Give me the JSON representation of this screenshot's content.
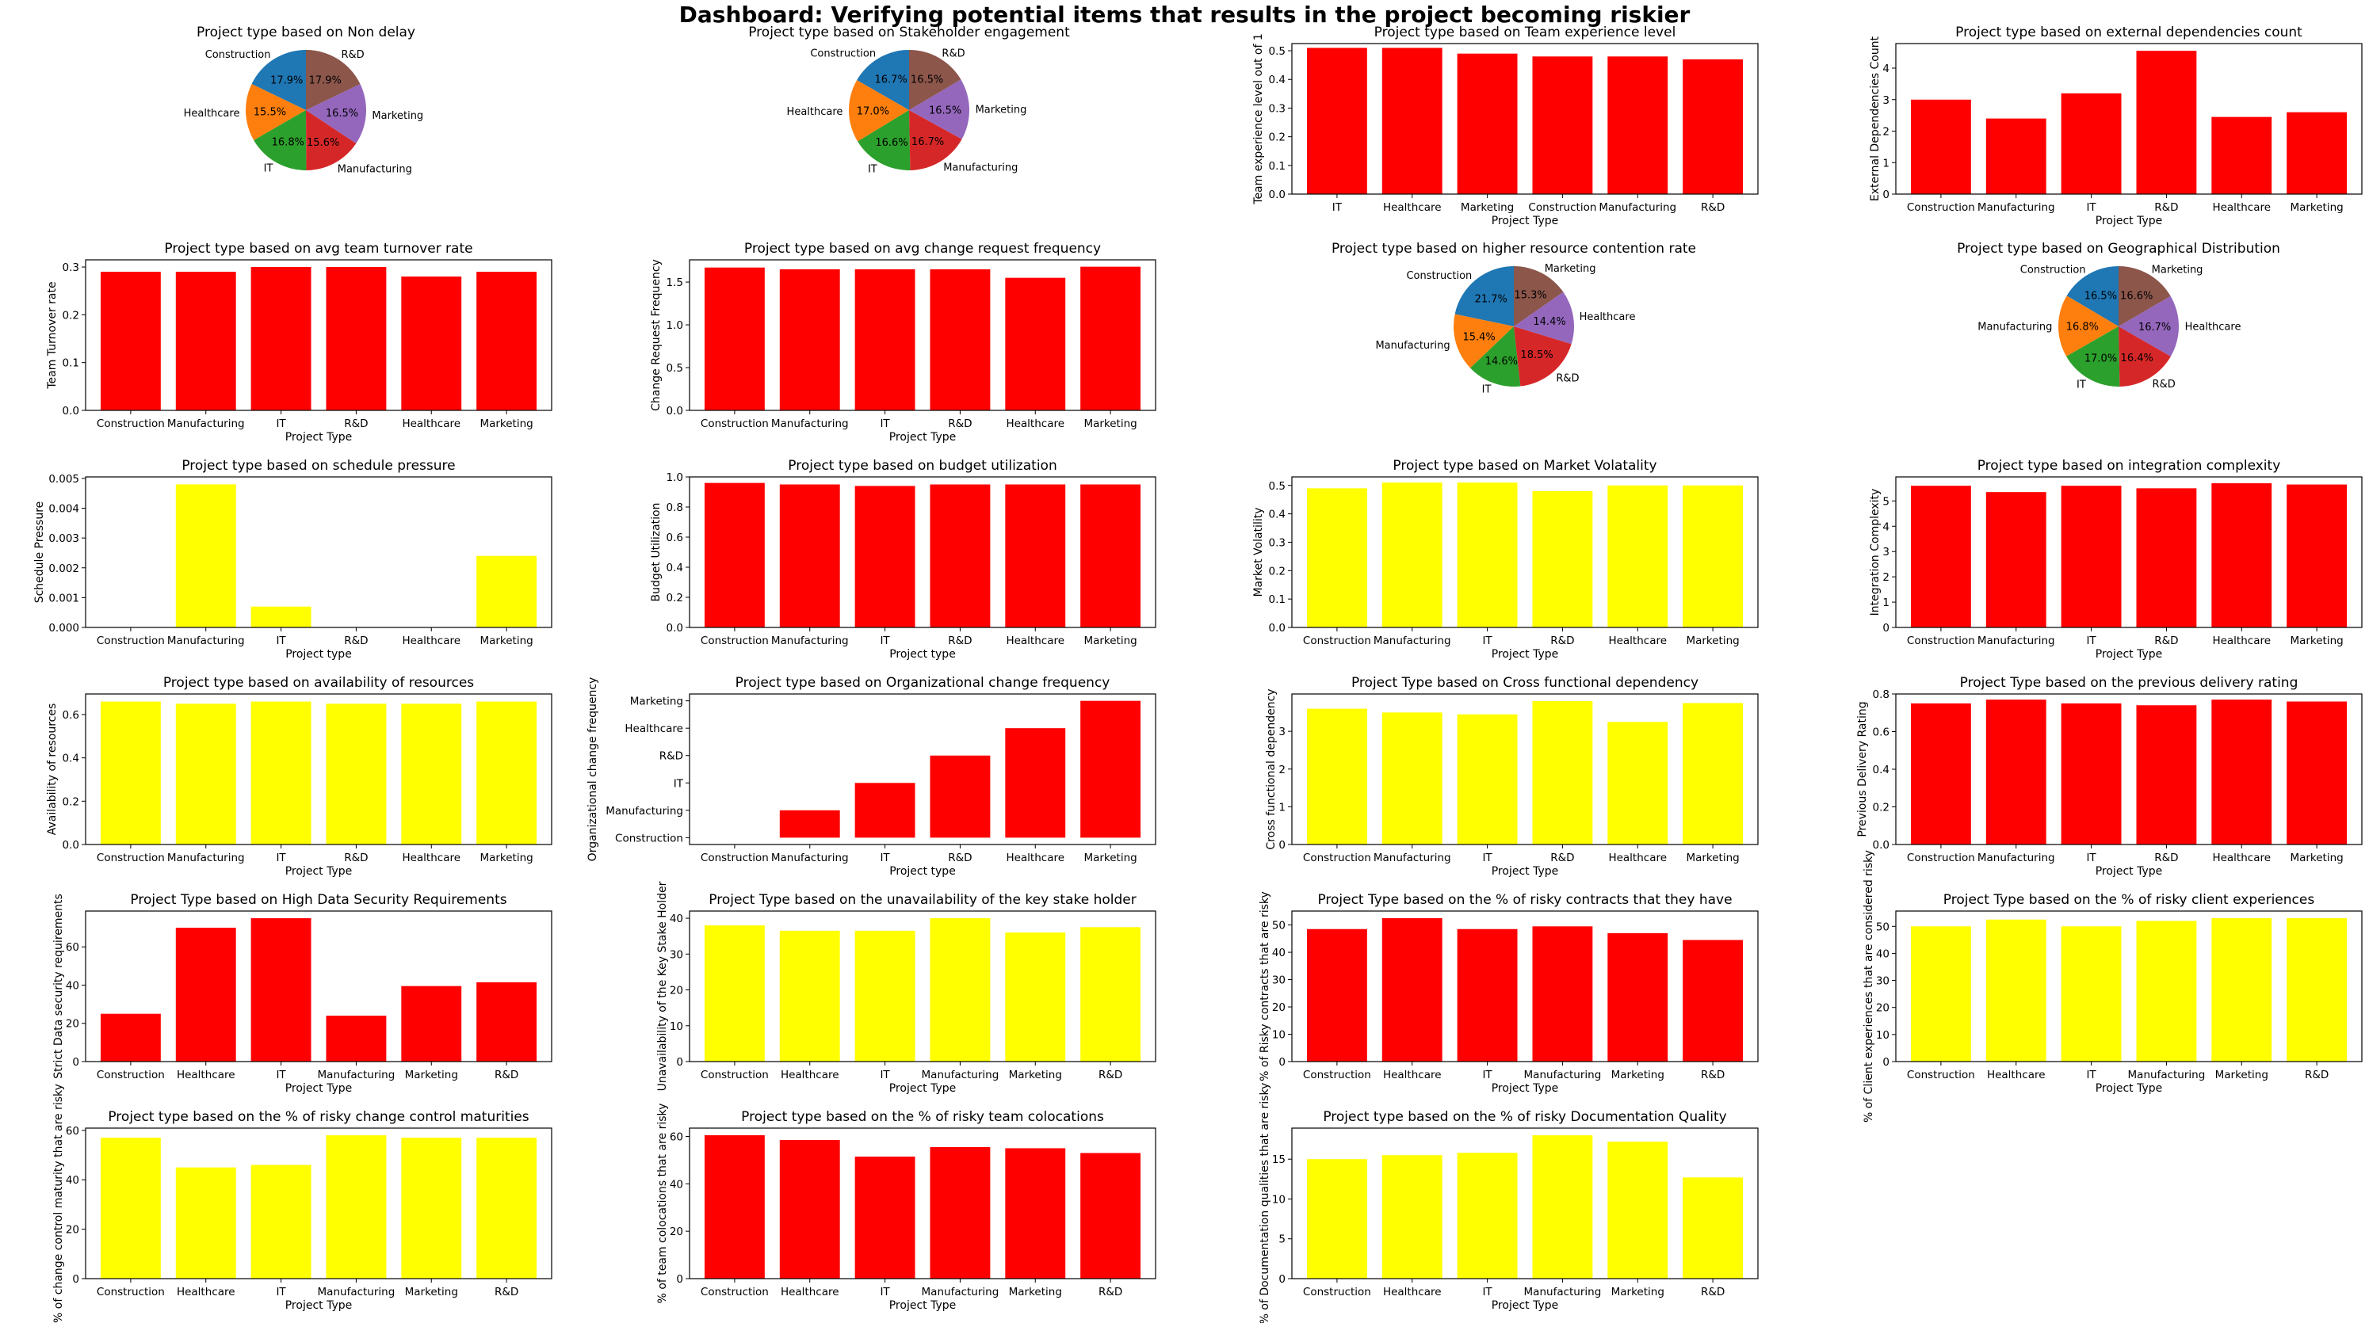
{
  "dashboard": {
    "title": "Dashboard: Verifying potential items that results in the project becoming riskier"
  },
  "colors": {
    "red": "#ff0000",
    "yellow": "#ffff00",
    "pie": [
      "#1f77b4",
      "#ff7f0e",
      "#2ca02c",
      "#d62728",
      "#9467bd",
      "#8c564b"
    ]
  },
  "chart_data": [
    {
      "type": "pie",
      "title": "Project type based on Non delay",
      "labels": [
        "Construction",
        "Healthcare",
        "IT",
        "Manufacturing",
        "Marketing",
        "R&D"
      ],
      "values": [
        17.9,
        15.5,
        16.8,
        15.6,
        16.5,
        17.9
      ],
      "pct_labels": [
        "17.9%",
        "15.5%",
        "16.8%",
        "15.6%",
        "16.5%",
        "17.9%"
      ]
    },
    {
      "type": "pie",
      "title": "Project type based on Stakeholder engagement",
      "labels": [
        "Construction",
        "Healthcare",
        "IT",
        "Manufacturing",
        "Marketing",
        "R&D"
      ],
      "values": [
        16.7,
        17.0,
        16.6,
        16.7,
        16.5,
        16.5
      ],
      "pct_labels": [
        "16.7%",
        "17.0%",
        "16.6%",
        "16.7%",
        "16.5%",
        "16.5%"
      ]
    },
    {
      "type": "bar",
      "orientation": "vertical",
      "title": "Project type based on Team experience level",
      "xlabel": "Project Type",
      "ylabel": "Team experience level out of 1",
      "color": "red",
      "categories": [
        "IT",
        "Healthcare",
        "Marketing",
        "Construction",
        "Manufacturing",
        "R&D"
      ],
      "values": [
        0.51,
        0.51,
        0.49,
        0.48,
        0.48,
        0.47
      ],
      "ylim": [
        0,
        0.525
      ],
      "yticks": [
        0.0,
        0.1,
        0.2,
        0.3,
        0.4,
        0.5
      ],
      "ytick_labels": [
        "0.0",
        "0.1",
        "0.2",
        "0.3",
        "0.4",
        "0.5"
      ]
    },
    {
      "type": "bar",
      "orientation": "vertical",
      "title": "Project type based on external dependencies count",
      "xlabel": "Project Type",
      "ylabel": "External Dependencies Count",
      "color": "red",
      "categories": [
        "Construction",
        "Manufacturing",
        "IT",
        "R&D",
        "Healthcare",
        "Marketing"
      ],
      "values": [
        3.0,
        2.4,
        3.2,
        4.55,
        2.45,
        2.6
      ],
      "ylim": [
        0,
        4.78
      ],
      "yticks": [
        0,
        1,
        2,
        3,
        4
      ],
      "ytick_labels": [
        "0",
        "1",
        "2",
        "3",
        "4"
      ]
    },
    {
      "type": "bar",
      "orientation": "vertical",
      "title": "Project type based on avg team turnover rate",
      "xlabel": "Project Type",
      "ylabel": "Team Turnover rate",
      "color": "red",
      "categories": [
        "Construction",
        "Manufacturing",
        "IT",
        "R&D",
        "Healthcare",
        "Marketing"
      ],
      "values": [
        0.29,
        0.29,
        0.3,
        0.3,
        0.28,
        0.29
      ],
      "ylim": [
        0,
        0.315
      ],
      "yticks": [
        0.0,
        0.1,
        0.2,
        0.3
      ],
      "ytick_labels": [
        "0.0",
        "0.1",
        "0.2",
        "0.3"
      ]
    },
    {
      "type": "bar",
      "orientation": "vertical",
      "title": "Project type based on avg change request frequency",
      "xlabel": "Project Type",
      "ylabel": "Change Request Frequency",
      "color": "red",
      "categories": [
        "Construction",
        "Manufacturing",
        "IT",
        "R&D",
        "Healthcare",
        "Marketing"
      ],
      "values": [
        1.67,
        1.65,
        1.65,
        1.65,
        1.55,
        1.68
      ],
      "ylim": [
        0,
        1.76
      ],
      "yticks": [
        0.0,
        0.5,
        1.0,
        1.5
      ],
      "ytick_labels": [
        "0.0",
        "0.5",
        "1.0",
        "1.5"
      ]
    },
    {
      "type": "pie",
      "title": "Project type based on higher resource contention rate",
      "labels": [
        "Construction",
        "Manufacturing",
        "IT",
        "R&D",
        "Healthcare",
        "Marketing"
      ],
      "values": [
        21.7,
        15.4,
        14.6,
        18.5,
        14.4,
        15.3
      ],
      "pct_labels": [
        "21.7%",
        "15.4%",
        "14.6%",
        "18.5%",
        "14.4%",
        "15.3%"
      ]
    },
    {
      "type": "pie",
      "title": "Project type based on Geographical Distribution",
      "labels": [
        "Construction",
        "Manufacturing",
        "IT",
        "R&D",
        "Healthcare",
        "Marketing"
      ],
      "values": [
        16.5,
        16.8,
        17.0,
        16.4,
        16.7,
        16.6
      ],
      "pct_labels": [
        "16.5%",
        "16.8%",
        "17.0%",
        "16.4%",
        "16.7%",
        "16.6%"
      ]
    },
    {
      "type": "bar",
      "orientation": "vertical",
      "title": "Project type based on schedule pressure",
      "xlabel": "Project type",
      "ylabel": "Schedule Pressure",
      "color": "yellow",
      "categories": [
        "Construction",
        "Manufacturing",
        "IT",
        "R&D",
        "Healthcare",
        "Marketing"
      ],
      "values": [
        0,
        0.0048,
        0.0007,
        0,
        0,
        0.0024
      ],
      "ylim": [
        0,
        0.00505
      ],
      "yticks": [
        0,
        0.001,
        0.002,
        0.003,
        0.004,
        0.005
      ],
      "ytick_labels": [
        "0.000",
        "0.001",
        "0.002",
        "0.003",
        "0.004",
        "0.005"
      ]
    },
    {
      "type": "bar",
      "orientation": "vertical",
      "title": "Project type based on budget utilization",
      "xlabel": "Project type",
      "ylabel": "Budget Utilization",
      "color": "red",
      "categories": [
        "Construction",
        "Manufacturing",
        "IT",
        "R&D",
        "Healthcare",
        "Marketing"
      ],
      "values": [
        0.96,
        0.95,
        0.94,
        0.95,
        0.95,
        0.95
      ],
      "ylim": [
        0,
        1.0
      ],
      "yticks": [
        0.0,
        0.2,
        0.4,
        0.6,
        0.8,
        1.0
      ],
      "ytick_labels": [
        "0.0",
        "0.2",
        "0.4",
        "0.6",
        "0.8",
        "1.0"
      ]
    },
    {
      "type": "bar",
      "orientation": "vertical",
      "title": "Project type based on Market Volatality",
      "xlabel": "Project Type",
      "ylabel": "Market Volatility",
      "color": "yellow",
      "categories": [
        "Construction",
        "Manufacturing",
        "IT",
        "R&D",
        "Healthcare",
        "Marketing"
      ],
      "values": [
        0.49,
        0.51,
        0.51,
        0.48,
        0.5,
        0.5
      ],
      "ylim": [
        0,
        0.53
      ],
      "yticks": [
        0.0,
        0.1,
        0.2,
        0.3,
        0.4,
        0.5
      ],
      "ytick_labels": [
        "0.0",
        "0.1",
        "0.2",
        "0.3",
        "0.4",
        "0.5"
      ]
    },
    {
      "type": "bar",
      "orientation": "vertical",
      "title": "Project type based on integration complexity",
      "xlabel": "Project Type",
      "ylabel": "Integration Complexity",
      "color": "red",
      "categories": [
        "Construction",
        "Manufacturing",
        "IT",
        "R&D",
        "Healthcare",
        "Marketing"
      ],
      "values": [
        5.6,
        5.35,
        5.6,
        5.5,
        5.7,
        5.65
      ],
      "ylim": [
        0,
        5.95
      ],
      "yticks": [
        0,
        1,
        2,
        3,
        4,
        5
      ],
      "ytick_labels": [
        "0",
        "1",
        "2",
        "3",
        "4",
        "5"
      ]
    },
    {
      "type": "bar",
      "orientation": "vertical",
      "title": "Project type based on availability of resources",
      "xlabel": "Project Type",
      "ylabel": "Availability of resources",
      "color": "yellow",
      "categories": [
        "Construction",
        "Manufacturing",
        "IT",
        "R&D",
        "Healthcare",
        "Marketing"
      ],
      "values": [
        0.66,
        0.65,
        0.66,
        0.65,
        0.65,
        0.66
      ],
      "ylim": [
        0,
        0.695
      ],
      "yticks": [
        0.0,
        0.2,
        0.4,
        0.6
      ],
      "ytick_labels": [
        "0.0",
        "0.2",
        "0.4",
        "0.6"
      ]
    },
    {
      "type": "bar",
      "orientation": "vertical",
      "title": "Project type based on Organizational change frequency",
      "xlabel": "Project type",
      "ylabel": "Organizational change frequency",
      "color": "red",
      "categories": [
        "Construction",
        "Manufacturing",
        "IT",
        "R&D",
        "Healthcare",
        "Marketing"
      ],
      "values": [
        0,
        1,
        2,
        3,
        4,
        5
      ],
      "ylim": [
        -0.25,
        5.25
      ],
      "yticks": [
        0,
        1,
        2,
        3,
        4,
        5
      ],
      "ytick_labels": [
        "Construction",
        "Manufacturing",
        "IT",
        "R&D",
        "Healthcare",
        "Marketing"
      ]
    },
    {
      "type": "bar",
      "orientation": "vertical",
      "title": "Project Type based on Cross functional dependency",
      "xlabel": "Project Type",
      "ylabel": "Cross functional dependency",
      "color": "yellow",
      "categories": [
        "Construction",
        "Manufacturing",
        "IT",
        "R&D",
        "Healthcare",
        "Marketing"
      ],
      "values": [
        3.6,
        3.5,
        3.45,
        3.8,
        3.25,
        3.75
      ],
      "ylim": [
        0,
        3.99
      ],
      "yticks": [
        0,
        1,
        2,
        3
      ],
      "ytick_labels": [
        "0",
        "1",
        "2",
        "3"
      ]
    },
    {
      "type": "bar",
      "orientation": "vertical",
      "title": "Project Type based on the previous delivery rating",
      "xlabel": "Project Type",
      "ylabel": "Previous Delivery Rating",
      "color": "red",
      "categories": [
        "Construction",
        "Manufacturing",
        "IT",
        "R&D",
        "Healthcare",
        "Marketing"
      ],
      "values": [
        0.75,
        0.77,
        0.75,
        0.74,
        0.77,
        0.76
      ],
      "ylim": [
        0,
        0.8
      ],
      "yticks": [
        0.0,
        0.2,
        0.4,
        0.6,
        0.8
      ],
      "ytick_labels": [
        "0.0",
        "0.2",
        "0.4",
        "0.6",
        "0.8"
      ]
    },
    {
      "type": "bar",
      "orientation": "vertical",
      "title": "Project Type based on High Data Security Requirements",
      "xlabel": "Project Type",
      "ylabel": "Strict Data security requirements",
      "color": "red",
      "categories": [
        "Construction",
        "Healthcare",
        "IT",
        "Manufacturing",
        "Marketing",
        "R&D"
      ],
      "values": [
        25,
        70,
        75,
        24,
        39.5,
        41.5
      ],
      "ylim": [
        0,
        78.75
      ],
      "yticks": [
        0,
        20,
        40,
        60
      ],
      "ytick_labels": [
        "0",
        "20",
        "40",
        "60"
      ]
    },
    {
      "type": "bar",
      "orientation": "vertical",
      "title": "Project Type based on the unavailability of the key stake holder",
      "xlabel": "Project Type",
      "ylabel": "Unavailability of the Key Stake Holder",
      "color": "yellow",
      "categories": [
        "Construction",
        "Healthcare",
        "IT",
        "Manufacturing",
        "Marketing",
        "R&D"
      ],
      "values": [
        38,
        36.5,
        36.5,
        40,
        36,
        37.5
      ],
      "ylim": [
        0,
        42
      ],
      "yticks": [
        0,
        10,
        20,
        30,
        40
      ],
      "ytick_labels": [
        "0",
        "10",
        "20",
        "30",
        "40"
      ]
    },
    {
      "type": "bar",
      "orientation": "vertical",
      "title": "Project Type based on the % of risky contracts that they have",
      "xlabel": "Project Type",
      "ylabel": "% of Risky contracts that are risky",
      "color": "red",
      "categories": [
        "Construction",
        "Healthcare",
        "IT",
        "Manufacturing",
        "Marketing",
        "R&D"
      ],
      "values": [
        48.5,
        52.5,
        48.5,
        49.5,
        47,
        44.5
      ],
      "ylim": [
        0,
        55.1
      ],
      "yticks": [
        0,
        10,
        20,
        30,
        40,
        50
      ],
      "ytick_labels": [
        "0",
        "10",
        "20",
        "30",
        "40",
        "50"
      ]
    },
    {
      "type": "bar",
      "orientation": "vertical",
      "title": "Project Type based on the % of risky client experiences",
      "xlabel": "Project Type",
      "ylabel": "% of Client experiences that are considered risky",
      "color": "yellow",
      "categories": [
        "Construction",
        "Healthcare",
        "IT",
        "Manufacturing",
        "Marketing",
        "R&D"
      ],
      "values": [
        50,
        52.5,
        50,
        52,
        53,
        53
      ],
      "ylim": [
        0,
        55.65
      ],
      "yticks": [
        0,
        10,
        20,
        30,
        40,
        50
      ],
      "ytick_labels": [
        "0",
        "10",
        "20",
        "30",
        "40",
        "50"
      ]
    },
    {
      "type": "bar",
      "orientation": "vertical",
      "title": "Project type based on the % of risky change control maturities",
      "xlabel": "Project Type",
      "ylabel": "% of change control maturity that are risky",
      "color": "yellow",
      "categories": [
        "Construction",
        "Healthcare",
        "IT",
        "Manufacturing",
        "Marketing",
        "R&D"
      ],
      "values": [
        57,
        45,
        46,
        58,
        57,
        57
      ],
      "ylim": [
        0,
        60.9
      ],
      "yticks": [
        0,
        20,
        40,
        60
      ],
      "ytick_labels": [
        "0",
        "20",
        "40",
        "60"
      ]
    },
    {
      "type": "bar",
      "orientation": "vertical",
      "title": "Project type based on the % of risky team colocations",
      "xlabel": "Project Type",
      "ylabel": "% of team colocations that are risky",
      "color": "red",
      "categories": [
        "Construction",
        "Healthcare",
        "IT",
        "Manufacturing",
        "Marketing",
        "R&D"
      ],
      "values": [
        60.5,
        58.5,
        51.5,
        55.5,
        55,
        53
      ],
      "ylim": [
        0,
        63.5
      ],
      "yticks": [
        0,
        20,
        40,
        60
      ],
      "ytick_labels": [
        "0",
        "20",
        "40",
        "60"
      ]
    },
    {
      "type": "bar",
      "orientation": "vertical",
      "title": "Project type based on the % of risky Documentation Quality",
      "xlabel": "Project Type",
      "ylabel": "% of Documentation qualities that are risky",
      "color": "yellow",
      "categories": [
        "Construction",
        "Healthcare",
        "IT",
        "Manufacturing",
        "Marketing",
        "R&D"
      ],
      "values": [
        15,
        15.5,
        15.8,
        18,
        17.2,
        12.7
      ],
      "ylim": [
        0,
        18.9
      ],
      "yticks": [
        0,
        5,
        10,
        15
      ],
      "ytick_labels": [
        "0",
        "5",
        "10",
        "15"
      ]
    }
  ]
}
